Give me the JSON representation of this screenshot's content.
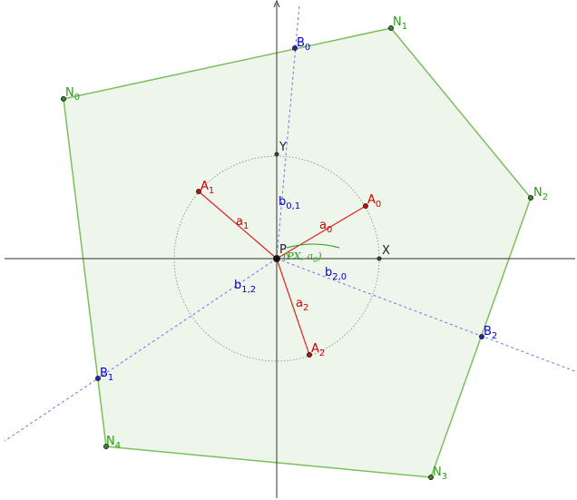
{
  "points": [
    {
      "name": "N",
      "sub": "0"
    },
    {
      "name": "N",
      "sub": "1"
    },
    {
      "name": "N",
      "sub": "2"
    },
    {
      "name": "N",
      "sub": "3"
    },
    {
      "name": "N",
      "sub": "4"
    },
    {
      "name": "A",
      "sub": "0"
    },
    {
      "name": "A",
      "sub": "1"
    },
    {
      "name": "A",
      "sub": "2"
    },
    {
      "name": "B",
      "sub": "0"
    },
    {
      "name": "B",
      "sub": "1"
    },
    {
      "name": "B",
      "sub": "2"
    },
    {
      "name": "P"
    },
    {
      "name": "X"
    },
    {
      "name": "Y"
    }
  ],
  "vectors": [
    {
      "name": "a",
      "sub": "0"
    },
    {
      "name": "a",
      "sub": "1"
    },
    {
      "name": "a",
      "sub": "2"
    },
    {
      "name": "b",
      "sub": "0,1"
    },
    {
      "name": "b",
      "sub": "1,2"
    },
    {
      "name": "b",
      "sub": "2,0"
    }
  ],
  "angle_label": {
    "open": "(",
    "vec1": "PX",
    "sep": ", ",
    "vec2": "a",
    "vec2_sub": "0",
    "close": ")"
  }
}
